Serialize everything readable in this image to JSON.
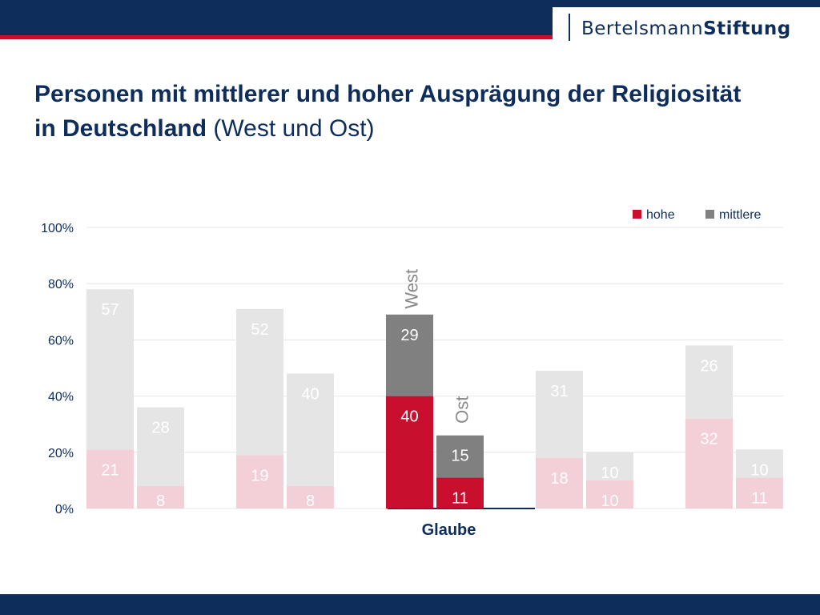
{
  "header": {
    "logo_light": "Bertelsmann",
    "logo_bold": "Stiftung"
  },
  "title": {
    "bold": "Personen mit mittlerer und hoher Ausprägung der Religiosität in Deutschland",
    "normal": " (West und Ost)"
  },
  "colors": {
    "navy": "#0e2d5a",
    "red": "#c8102e",
    "hohe": "#c8102e",
    "mittlere": "#808080",
    "hohe_faded": "#f3cfd8",
    "mittlere_faded": "#e5e5e5"
  },
  "chart_data": {
    "type": "bar",
    "stacked": true,
    "ylim": [
      0,
      100
    ],
    "yticks": [
      "0%",
      "20%",
      "40%",
      "60%",
      "80%",
      "100%"
    ],
    "grid": true,
    "legend": {
      "position": "top-right",
      "entries": [
        "hohe",
        "mittlere"
      ]
    },
    "categories": [
      "",
      "",
      "Glaube",
      "",
      ""
    ],
    "highlighted_category": 2,
    "subgroups": [
      "West",
      "Ost"
    ],
    "series": [
      {
        "name": "hohe",
        "values": [
          [
            21,
            8
          ],
          [
            19,
            8
          ],
          [
            40,
            11
          ],
          [
            18,
            10
          ],
          [
            32,
            11
          ]
        ]
      },
      {
        "name": "mittlere",
        "values": [
          [
            57,
            28
          ],
          [
            52,
            40
          ],
          [
            29,
            15
          ],
          [
            31,
            10
          ],
          [
            26,
            10
          ]
        ]
      }
    ]
  }
}
